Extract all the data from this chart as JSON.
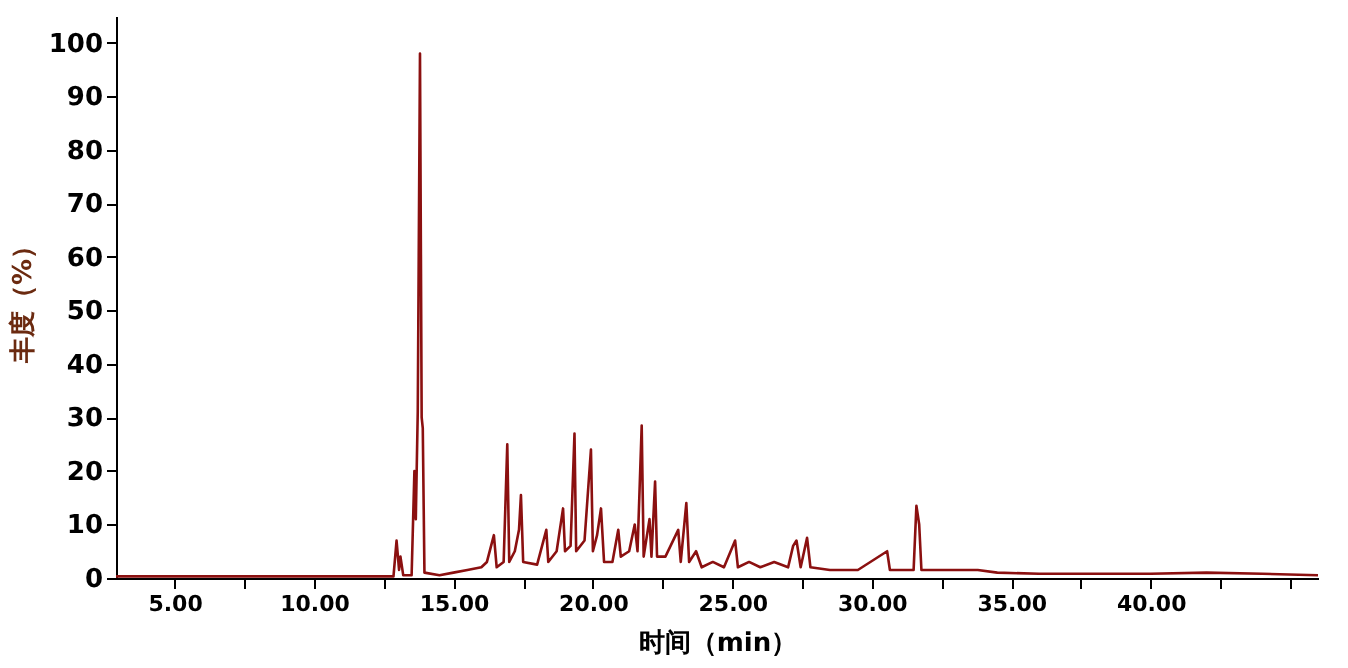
{
  "chart_data": {
    "type": "line",
    "xlabel": "时间（min）",
    "ylabel": "丰度（%）",
    "xlim": [
      2.9,
      46
    ],
    "ylim": [
      0,
      105
    ],
    "xticks": [
      {
        "value": 5,
        "label": "5.00"
      },
      {
        "value": 7.5,
        "label": null
      },
      {
        "value": 10,
        "label": "10.00"
      },
      {
        "value": 12.5,
        "label": null
      },
      {
        "value": 15,
        "label": "15.00"
      },
      {
        "value": 17.5,
        "label": null
      },
      {
        "value": 20,
        "label": "20.00"
      },
      {
        "value": 22.5,
        "label": null
      },
      {
        "value": 25,
        "label": "25.00"
      },
      {
        "value": 27.5,
        "label": null
      },
      {
        "value": 30,
        "label": "30.00"
      },
      {
        "value": 32.5,
        "label": null
      },
      {
        "value": 35,
        "label": "35.00"
      },
      {
        "value": 37.5,
        "label": null
      },
      {
        "value": 40,
        "label": "40.00"
      },
      {
        "value": 42.5,
        "label": null
      },
      {
        "value": 45,
        "label": null
      }
    ],
    "yticks": [
      0,
      10,
      20,
      30,
      40,
      50,
      60,
      70,
      80,
      90,
      100
    ],
    "grid": false,
    "marker": "none",
    "line_style": "solid",
    "series": [
      {
        "color": "#8b1010",
        "x": [
          2.9,
          12.85,
          12.96,
          13.05,
          13.1,
          13.2,
          13.5,
          13.6,
          13.65,
          13.72,
          13.8,
          13.86,
          13.9,
          13.96,
          14.5,
          15.0,
          15.5,
          16.0,
          16.2,
          16.45,
          16.55,
          16.8,
          16.93,
          17.0,
          17.2,
          17.35,
          17.42,
          17.5,
          18.0,
          18.33,
          18.4,
          18.7,
          18.93,
          19.0,
          19.2,
          19.34,
          19.4,
          19.7,
          19.93,
          20.0,
          20.15,
          20.29,
          20.4,
          20.7,
          20.91,
          21.0,
          21.3,
          21.5,
          21.6,
          21.75,
          21.82,
          22.03,
          22.1,
          22.23,
          22.3,
          22.6,
          23.06,
          23.15,
          23.35,
          23.45,
          23.7,
          23.9,
          24.3,
          24.7,
          25.1,
          25.2,
          25.6,
          26.0,
          26.5,
          27.0,
          27.18,
          27.3,
          27.45,
          27.68,
          27.8,
          28.5,
          29.5,
          30.55,
          30.65,
          31.5,
          31.6,
          31.7,
          31.78,
          32.5,
          33.8,
          34.5,
          36,
          38,
          40,
          42,
          44,
          46
        ],
        "values": [
          0.3,
          0.3,
          7,
          1.5,
          4,
          0.5,
          0.5,
          20,
          11,
          31,
          98,
          30,
          28,
          1,
          0.5,
          1,
          1.5,
          2,
          3,
          8,
          2,
          3,
          25,
          3,
          5,
          9,
          15.5,
          3,
          2.5,
          9,
          3,
          5,
          13,
          5,
          6,
          27,
          5,
          7,
          24,
          5,
          8,
          13,
          3,
          3,
          9,
          4,
          5,
          10,
          5,
          28.5,
          4,
          11,
          4,
          18,
          4,
          4,
          9,
          3,
          14,
          3,
          5,
          2,
          3,
          2,
          7,
          2,
          3,
          2,
          3,
          2,
          6,
          7,
          2,
          7.5,
          2,
          1.5,
          1.5,
          5,
          1.5,
          1.5,
          13.5,
          10,
          1.5,
          1.5,
          1.5,
          1,
          0.8,
          0.8,
          0.8,
          1,
          0.8,
          0.5
        ]
      }
    ]
  }
}
